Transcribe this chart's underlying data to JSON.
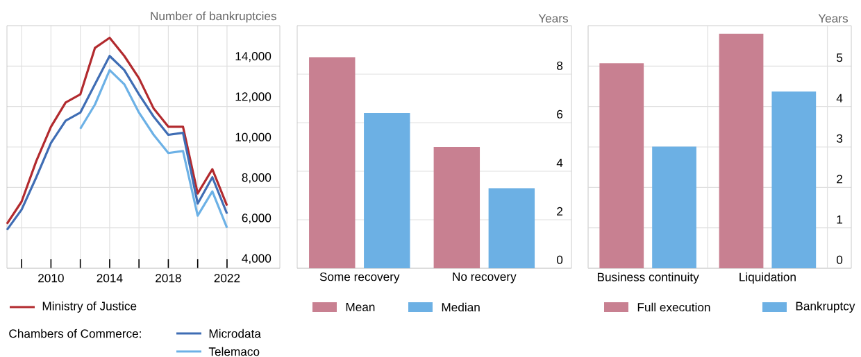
{
  "chart_data": [
    {
      "type": "line",
      "ylabel": "Number of bankruptcies",
      "legend_title": "Chambers of Commerce:",
      "x": [
        2007,
        2008,
        2009,
        2010,
        2011,
        2012,
        2013,
        2014,
        2015,
        2016,
        2017,
        2018,
        2019,
        2020,
        2021,
        2022
      ],
      "xlim": [
        2007,
        2025.6
      ],
      "xticks": [
        {
          "value": 2008,
          "label": null
        },
        2010,
        {
          "value": 2012,
          "label": null
        },
        2014,
        {
          "value": 2016,
          "label": null
        },
        2018,
        {
          "value": 2020,
          "label": null
        },
        2022
      ],
      "ylim": [
        4000,
        16000
      ],
      "yticks": [
        {
          "value": 4000,
          "label": "4,000"
        },
        {
          "value": 6000,
          "label": "6,000"
        },
        {
          "value": 8000,
          "label": "8,000"
        },
        {
          "value": 10000,
          "label": "10,000"
        },
        {
          "value": 12000,
          "label": "12,000"
        },
        {
          "value": 14000,
          "label": "14,000"
        }
      ],
      "grid": true,
      "legend": "bottom",
      "series": [
        {
          "name": "Ministry of Justice",
          "color": "#b22a2e",
          "values": [
            6200,
            7300,
            9300,
            11000,
            12200,
            12600,
            14900,
            15400,
            14500,
            13400,
            11900,
            11000,
            11000,
            7700,
            8900,
            7100
          ]
        },
        {
          "name": "Microdata",
          "color": "#3f6db4",
          "values": [
            5900,
            6900,
            8500,
            10200,
            11300,
            11700,
            13100,
            14500,
            13800,
            12600,
            11500,
            10600,
            10700,
            7200,
            8500,
            6700
          ]
        },
        {
          "name": "Telemaco",
          "color": "#6cb1e6",
          "x": [
            2012,
            2013,
            2014,
            2015,
            2016,
            2017,
            2018,
            2019,
            2020,
            2021,
            2022
          ],
          "values": [
            10900,
            12100,
            13800,
            13100,
            11700,
            10600,
            9700,
            9800,
            6600,
            7800,
            6000
          ]
        }
      ]
    },
    {
      "type": "bar",
      "ylabel": "Years",
      "categories": [
        "Some recovery",
        "No recovery"
      ],
      "ylim": [
        0,
        10
      ],
      "yticks": [
        0,
        2,
        4,
        6,
        8
      ],
      "grid": "y",
      "legend": "bottom",
      "series": [
        {
          "name": "Mean",
          "color": "#c88091",
          "values": [
            8.7,
            5.0
          ]
        },
        {
          "name": "Median",
          "color": "#6cb0e4",
          "values": [
            6.4,
            3.3
          ]
        }
      ]
    },
    {
      "type": "bar",
      "ylabel": "Years",
      "categories": [
        "Business continuity",
        "Liquidation"
      ],
      "ylim": [
        0,
        6
      ],
      "yticks": [
        0,
        1,
        2,
        3,
        4,
        5
      ],
      "grid": true,
      "legend": "bottom",
      "series": [
        {
          "name": "Full execution",
          "color": "#c88091",
          "values": [
            5.07,
            5.8
          ]
        },
        {
          "name": "Bankruptcy",
          "color": "#6cb0e4",
          "values": [
            3.01,
            4.37
          ]
        }
      ]
    }
  ]
}
